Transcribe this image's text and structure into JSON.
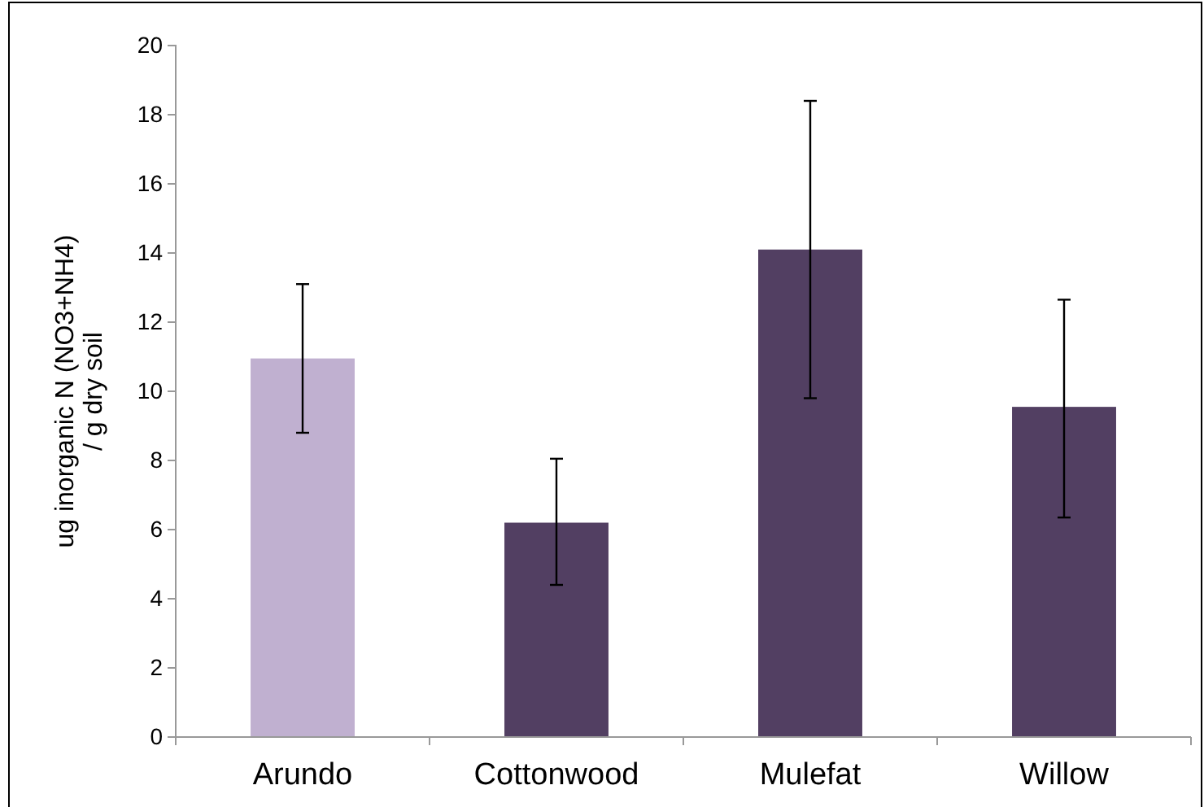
{
  "chart_data": {
    "type": "bar",
    "ylabel": "ug inorganic N (NO3+NH4)\n/ g dry soil",
    "categories": [
      "Arundo",
      "Cottonwood",
      "Mulefat",
      "Willow"
    ],
    "values": [
      10.95,
      6.2,
      14.1,
      9.55
    ],
    "colors": [
      "#c0b0d0",
      "#523f62",
      "#523f62",
      "#523f62"
    ],
    "errors": [
      [
        8.8,
        13.1
      ],
      [
        4.4,
        8.05
      ],
      [
        9.8,
        18.4
      ],
      [
        6.35,
        12.65
      ]
    ],
    "ylim": [
      0,
      20
    ],
    "yticks": [
      0,
      2,
      4,
      6,
      8,
      10,
      12,
      14,
      16,
      18,
      20
    ]
  }
}
